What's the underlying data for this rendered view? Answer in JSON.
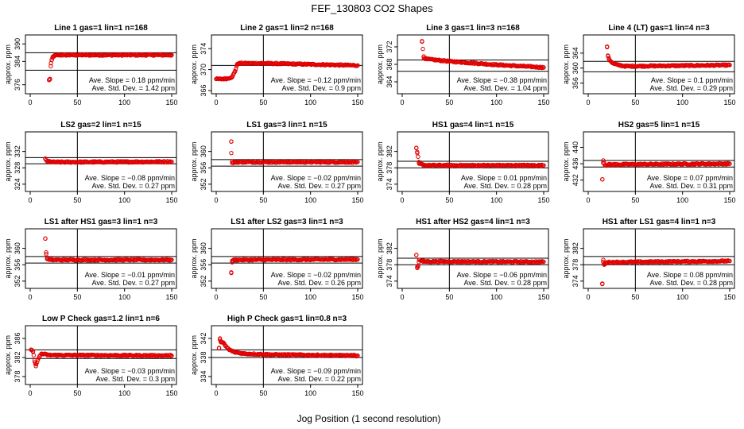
{
  "figure": {
    "title": "FEF_130803  CO2 Shapes",
    "xlabel": "Jog Position (1 second resolution)"
  },
  "chart_data": [
    {
      "type": "scatter",
      "title": "Line 1 gas=1 lin=1 n=168",
      "ylabel": "approx. ppm",
      "xlim": [
        0,
        150
      ],
      "ylim": [
        374,
        392
      ],
      "yticks": [
        376,
        384,
        390
      ],
      "xticks": [
        0,
        50,
        100,
        150
      ],
      "hlines": [
        381,
        387
      ],
      "vline": 50,
      "stat_slope": "Ave. Slope =  0.18  ppm/min",
      "stat_sd": "Ave. Std. Dev. =  1.42  ppm",
      "series": [
        {
          "color": "#e00000",
          "points": [
            [
              20,
              377.6
            ],
            [
              21,
              378
            ],
            [
              22,
              383.4
            ],
            [
              23,
              384.6
            ],
            [
              24,
              385.6
            ],
            [
              26,
              386
            ],
            [
              30,
              386.2
            ],
            [
              150,
              386.2
            ]
          ]
        }
      ]
    },
    {
      "type": "scatter",
      "title": "Line 2 gas=1 lin=2 n=168",
      "ylabel": "approx. ppm",
      "xlim": [
        0,
        150
      ],
      "ylim": [
        366,
        376
      ],
      "yticks": [
        366,
        370,
        374
      ],
      "xticks": [
        0,
        50,
        100,
        150
      ],
      "hlines": [
        370.8
      ],
      "vline": 50,
      "stat_slope": "Ave. Slope = −0.12  ppm/min",
      "stat_sd": "Ave. Std. Dev. =  0.9  ppm",
      "series": [
        {
          "color": "#e00000",
          "points": [
            [
              0,
              368.2
            ],
            [
              6,
              368.2
            ],
            [
              12,
              368.3
            ],
            [
              17,
              368.6
            ],
            [
              20,
              369.7
            ],
            [
              22,
              370.9
            ],
            [
              24,
              371.2
            ],
            [
              50,
              371.2
            ],
            [
              100,
              371
            ],
            [
              150,
              370.8
            ]
          ]
        }
      ]
    },
    {
      "type": "scatter",
      "title": "Line 3 gas=1 lin=3 n=168",
      "ylabel": "approx. ppm",
      "xlim": [
        0,
        150
      ],
      "ylim": [
        362,
        374
      ],
      "yticks": [
        364,
        368,
        372
      ],
      "xticks": [
        0,
        50,
        100,
        150
      ],
      "hlines": [
        369,
        366.4
      ],
      "vline": 50,
      "stat_slope": "Ave. Slope = −0.38  ppm/min",
      "stat_sd": "Ave. Std. Dev. =  1.04  ppm",
      "series": [
        {
          "color": "#e00000",
          "points": [
            [
              21,
              373.2
            ],
            [
              23,
              369.5
            ],
            [
              26,
              369.2
            ],
            [
              50,
              368.7
            ],
            [
              100,
              367.9
            ],
            [
              150,
              367.3
            ]
          ]
        }
      ]
    },
    {
      "type": "scatter",
      "title": "Line 4 (LT) gas=1 lin=4 n=3",
      "ylabel": "approx. ppm",
      "xlim": [
        0,
        150
      ],
      "ylim": [
        354,
        368
      ],
      "yticks": [
        356,
        360,
        364
      ],
      "xticks": [
        0,
        50,
        100,
        150
      ],
      "hlines": [
        361.8,
        359
      ],
      "vline": 50,
      "stat_slope": "Ave. Slope =  0.1  ppm/min",
      "stat_sd": "Ave. Std. Dev. =  0.29  ppm",
      "series": [
        {
          "color": "#e00000",
          "points": [
            [
              20,
              365.6
            ],
            [
              21,
              363.2
            ],
            [
              22,
              362.4
            ],
            [
              24,
              361.8
            ],
            [
              27,
              361.2
            ],
            [
              32,
              360.8
            ],
            [
              40,
              360.5
            ],
            [
              150,
              360.8
            ]
          ]
        }
      ]
    },
    {
      "type": "scatter",
      "title": "LS2 gas=2 lin=1 n=15",
      "ylabel": "approx. ppm",
      "xlim": [
        0,
        150
      ],
      "ylim": [
        323,
        336
      ],
      "yticks": [
        324,
        328,
        332
      ],
      "xticks": [
        0,
        50,
        100,
        150
      ],
      "hlines": [
        330.5,
        329
      ],
      "vline": 50,
      "stat_slope": "Ave. Slope = −0.08  ppm/min",
      "stat_sd": "Ave. Std. Dev. =  0.27  ppm",
      "series": [
        {
          "color": "#e00000",
          "points": [
            [
              16,
              330.2
            ],
            [
              18,
              329.6
            ],
            [
              25,
              329.4
            ],
            [
              150,
              329.5
            ]
          ]
        }
      ]
    },
    {
      "type": "scatter",
      "title": "LS1 gas=3 lin=1 n=15",
      "ylabel": "approx. ppm",
      "xlim": [
        0,
        150
      ],
      "ylim": [
        351,
        364
      ],
      "yticks": [
        352,
        356,
        360
      ],
      "xticks": [
        0,
        50,
        100,
        150
      ],
      "hlines": [
        358,
        356.4
      ],
      "vline": 50,
      "stat_slope": "Ave. Slope = −0.02  ppm/min",
      "stat_sd": "Ave. Std. Dev. =  0.27  ppm",
      "series": [
        {
          "color": "#e00000",
          "points": [
            [
              16,
              362.4
            ],
            [
              16,
              359.6
            ],
            [
              17,
              357.2
            ],
            [
              20,
              357.4
            ],
            [
              150,
              357.4
            ]
          ]
        }
      ]
    },
    {
      "type": "scatter",
      "title": "HS1 gas=4 lin=1 n=15",
      "ylabel": "approx. ppm",
      "xlim": [
        0,
        150
      ],
      "ylim": [
        373,
        386
      ],
      "yticks": [
        374,
        378,
        382
      ],
      "xticks": [
        0,
        50,
        100,
        150
      ],
      "hlines": [
        379.6,
        378
      ],
      "vline": 50,
      "stat_slope": "Ave. Slope =  0.01  ppm/min",
      "stat_sd": "Ave. Std. Dev. =  0.28  ppm",
      "series": [
        {
          "color": "#e00000",
          "points": [
            [
              15,
              382.8
            ],
            [
              16,
              381.6
            ],
            [
              18,
              379
            ],
            [
              25,
              378.6
            ],
            [
              150,
              378.6
            ]
          ]
        }
      ]
    },
    {
      "type": "scatter",
      "title": "HS2 gas=5 lin=1 n=15",
      "ylabel": "approx. ppm",
      "xlim": [
        0,
        150
      ],
      "ylim": [
        430,
        443
      ],
      "yticks": [
        432,
        436,
        440
      ],
      "xticks": [
        0,
        50,
        100,
        150
      ],
      "hlines": [
        436.8,
        435.2
      ],
      "vline": 50,
      "stat_slope": "Ave. Slope =  0.07  ppm/min",
      "stat_sd": "Ave. Std. Dev. =  0.31  ppm",
      "series": [
        {
          "color": "#e00000",
          "points": [
            [
              15,
              432.2
            ],
            [
              16,
              436.8
            ],
            [
              18,
              435.6
            ],
            [
              22,
              435.8
            ],
            [
              150,
              436
            ]
          ]
        }
      ]
    },
    {
      "type": "scatter",
      "title": "LS1 after HS1 gas=3 lin=1 n=3",
      "ylabel": "approx. ppm",
      "xlim": [
        0,
        150
      ],
      "ylim": [
        351,
        364
      ],
      "yticks": [
        352,
        356,
        360
      ],
      "xticks": [
        0,
        50,
        100,
        150
      ],
      "hlines": [
        358,
        356.4
      ],
      "vline": 50,
      "stat_slope": "Ave. Slope = −0.01  ppm/min",
      "stat_sd": "Ave. Std. Dev. =  0.27  ppm",
      "series": [
        {
          "color": "#e00000",
          "points": [
            [
              16,
              362.4
            ],
            [
              17,
              358.6
            ],
            [
              18,
              357.4
            ],
            [
              22,
              357.2
            ],
            [
              150,
              357.2
            ]
          ]
        }
      ]
    },
    {
      "type": "scatter",
      "title": "LS1 after LS2 gas=3 lin=1 n=3",
      "ylabel": "approx. ppm",
      "xlim": [
        0,
        150
      ],
      "ylim": [
        351,
        364
      ],
      "yticks": [
        352,
        356,
        360
      ],
      "xticks": [
        0,
        50,
        100,
        150
      ],
      "hlines": [
        358,
        356.4
      ],
      "vline": 50,
      "stat_slope": "Ave. Slope = −0.02  ppm/min",
      "stat_sd": "Ave. Std. Dev. =  0.26  ppm",
      "series": [
        {
          "color": "#e00000",
          "points": [
            [
              16,
              354
            ],
            [
              17,
              357
            ],
            [
              20,
              357.2
            ],
            [
              150,
              357.3
            ]
          ]
        }
      ]
    },
    {
      "type": "scatter",
      "title": "HS1 after HS2 gas=4 lin=1 n=3",
      "ylabel": "approx. ppm",
      "xlim": [
        0,
        150
      ],
      "ylim": [
        373,
        386
      ],
      "yticks": [
        374,
        378,
        382
      ],
      "xticks": [
        0,
        50,
        100,
        150
      ],
      "hlines": [
        379.6,
        378
      ],
      "vline": 50,
      "stat_slope": "Ave. Slope = −0.06  ppm/min",
      "stat_sd": "Ave. Std. Dev. =  0.28  ppm",
      "series": [
        {
          "color": "#e00000",
          "points": [
            [
              15,
              380.4
            ],
            [
              16,
              377.2
            ],
            [
              17,
              377.8
            ],
            [
              18,
              379.2
            ],
            [
              22,
              378.8
            ],
            [
              150,
              378.7
            ]
          ]
        }
      ]
    },
    {
      "type": "scatter",
      "title": "HS1 after LS1 gas=4 lin=1 n=3",
      "ylabel": "approx. ppm",
      "xlim": [
        0,
        150
      ],
      "ylim": [
        373,
        386
      ],
      "yticks": [
        374,
        378,
        382
      ],
      "xticks": [
        0,
        50,
        100,
        150
      ],
      "hlines": [
        380,
        378
      ],
      "vline": 50,
      "stat_slope": "Ave. Slope =  0.08  ppm/min",
      "stat_sd": "Ave. Std. Dev. =  0.28  ppm",
      "series": [
        {
          "color": "#e00000",
          "points": [
            [
              15,
              373.4
            ],
            [
              16,
              379.2
            ],
            [
              17,
              378
            ],
            [
              20,
              378.6
            ],
            [
              150,
              378.9
            ]
          ]
        }
      ]
    },
    {
      "type": "scatter",
      "title": "Low P Check gas=1.2 lin=1 n=6",
      "ylabel": "approx. ppm",
      "xlim": [
        0,
        150
      ],
      "ylim": [
        377,
        388
      ],
      "yticks": [
        378,
        382,
        386
      ],
      "xticks": [
        0,
        50,
        100,
        150
      ],
      "hlines": [
        383.6,
        381.8
      ],
      "vline": 50,
      "stat_slope": "Ave. Slope = −0.03  ppm/min",
      "stat_sd": "Ave. Std. Dev. =  0.3  ppm",
      "series": [
        {
          "color": "#e00000",
          "points": [
            [
              1,
              383.6
            ],
            [
              3,
              383.2
            ],
            [
              5,
              381
            ],
            [
              6,
              380.2
            ],
            [
              8,
              381.6
            ],
            [
              12,
              382.8
            ],
            [
              20,
              382.5
            ],
            [
              150,
              382.4
            ]
          ]
        }
      ]
    },
    {
      "type": "scatter",
      "title": "High P Check gas=1 lin=0.8 n=3",
      "ylabel": "approx. ppm",
      "xlim": [
        0,
        150
      ],
      "ylim": [
        333,
        344
      ],
      "yticks": [
        334,
        338,
        342
      ],
      "xticks": [
        0,
        50,
        100,
        150
      ],
      "hlines": [
        339.6,
        338
      ],
      "vline": 50,
      "stat_slope": "Ave. Slope = −0.09  ppm/min",
      "stat_sd": "Ave. Std. Dev. =  0.22  ppm",
      "series": [
        {
          "color": "#e00000",
          "points": [
            [
              3,
              340
            ],
            [
              4,
              342
            ],
            [
              5,
              341.2
            ],
            [
              8,
              341
            ],
            [
              10,
              340.4
            ],
            [
              14,
              339.6
            ],
            [
              20,
              339.1
            ],
            [
              30,
              338.8
            ],
            [
              60,
              338.6
            ],
            [
              150,
              338.4
            ]
          ]
        }
      ]
    }
  ]
}
